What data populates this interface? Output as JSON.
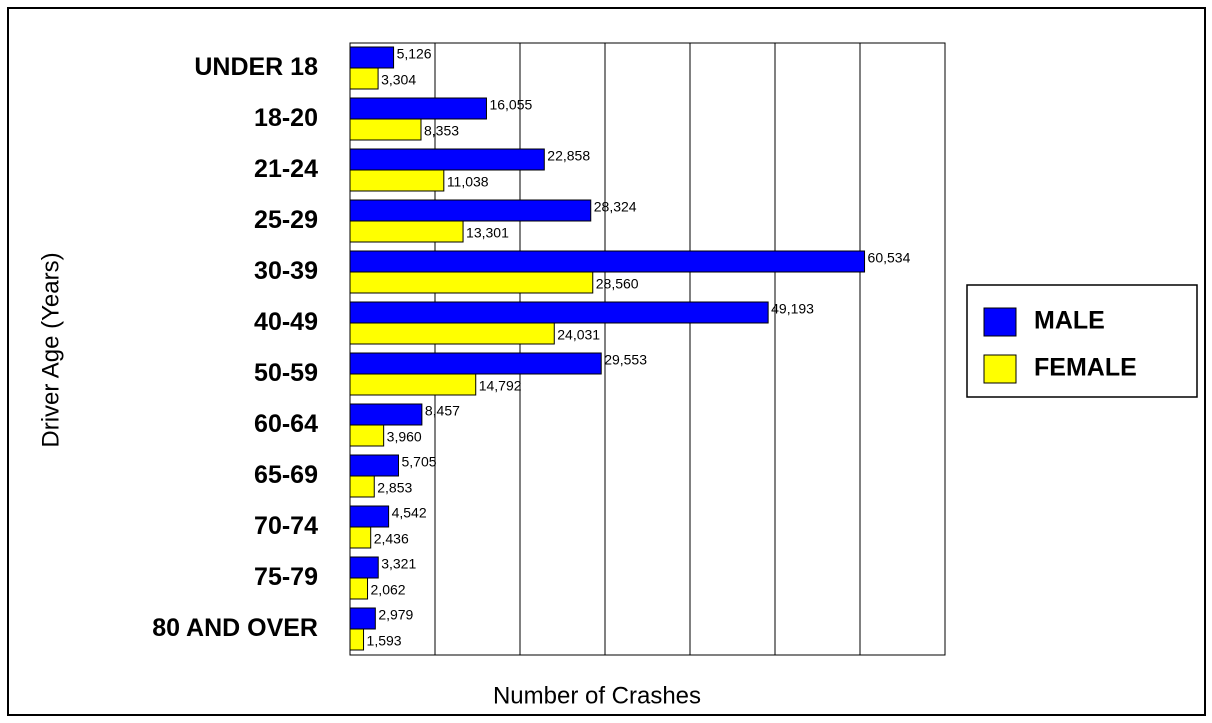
{
  "chart_data": {
    "type": "bar",
    "orientation": "horizontal",
    "x_label": "Number of Crashes",
    "y_label": "Driver Age (Years)",
    "categories": [
      "UNDER 18",
      "18-20",
      "21-24",
      "25-29",
      "30-39",
      "40-49",
      "50-59",
      "60-64",
      "65-69",
      "70-74",
      "75-79",
      "80 AND OVER"
    ],
    "series": [
      {
        "name": "MALE",
        "color": "#0000ff",
        "values": [
          5126,
          16055,
          22858,
          28324,
          60534,
          49193,
          29553,
          8457,
          5705,
          4542,
          3321,
          2979
        ],
        "value_labels": [
          "5,126",
          "16,055",
          "22,858",
          "28,324",
          "60,534",
          "49,193",
          "29,553",
          "8,457",
          "5,705",
          "4,542",
          "3,321",
          "2,979"
        ]
      },
      {
        "name": "FEMALE",
        "color": "#ffff00",
        "values": [
          3304,
          8353,
          11038,
          13301,
          28560,
          24031,
          14792,
          3960,
          2853,
          2436,
          2062,
          1593
        ],
        "value_labels": [
          "3,304",
          "8,353",
          "11,038",
          "13,301",
          "28,560",
          "24,031",
          "14,792",
          "3,960",
          "2,853",
          "2,436",
          "2,062",
          "1,593"
        ]
      }
    ],
    "xlim": [
      0,
      70000
    ],
    "xticks": [
      0,
      10000,
      20000,
      30000,
      40000,
      50000,
      60000,
      70000
    ],
    "grid": true,
    "legend": "right"
  }
}
